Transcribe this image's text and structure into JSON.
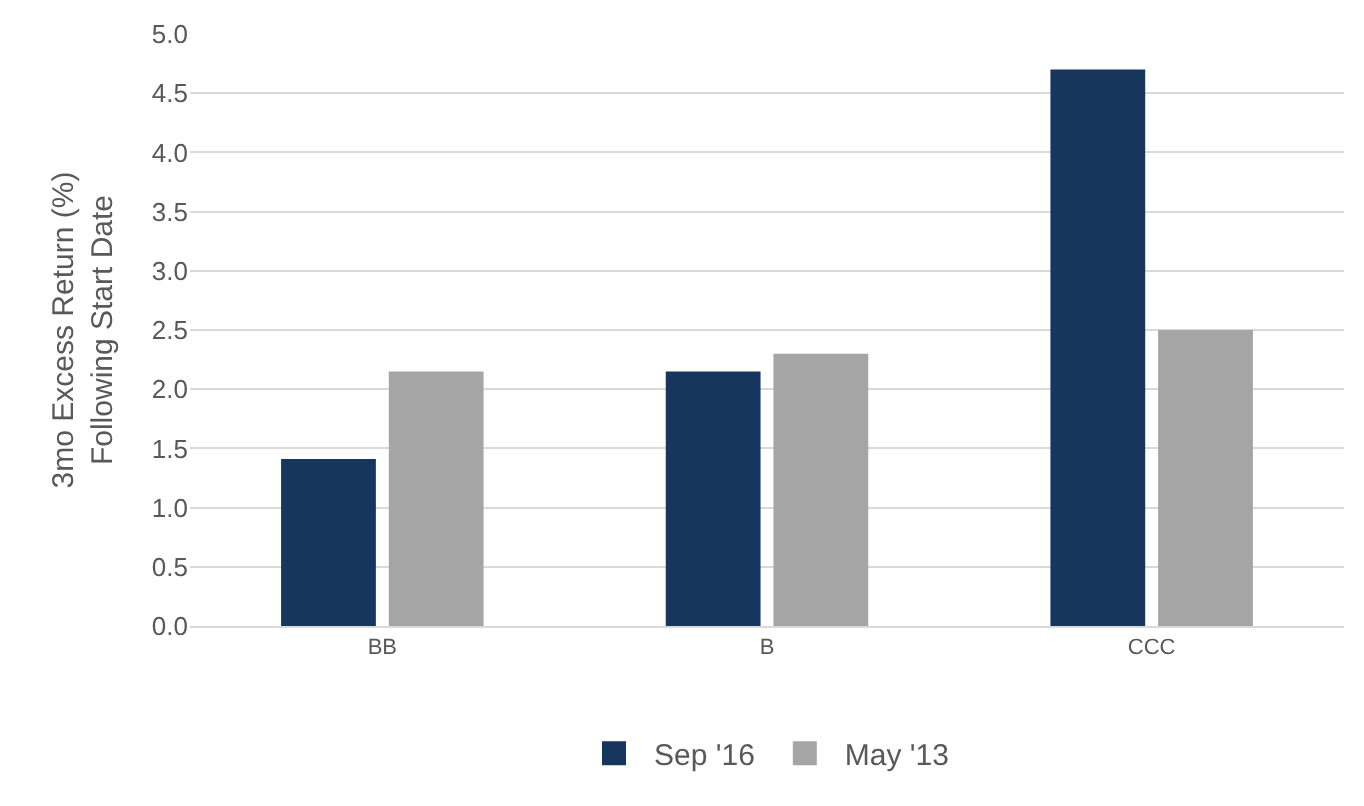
{
  "chart_data": {
    "type": "bar",
    "ylabel": "3mo Excess Return (%) Following Start Date",
    "categories": [
      "BB",
      "B",
      "CCC"
    ],
    "series": [
      {
        "name": "Sep '16",
        "color": "#17365d",
        "values": [
          1.41,
          2.15,
          4.7
        ]
      },
      {
        "name": "May '13",
        "color": "#a5a5a5",
        "values": [
          2.15,
          2.3,
          2.5
        ]
      }
    ],
    "ylim": [
      0,
      5
    ],
    "yticks": [
      {
        "value": 0,
        "label": "0.0"
      },
      {
        "value": 0.5,
        "label": "0.5"
      },
      {
        "value": 1,
        "label": "1.0"
      },
      {
        "value": 1.5,
        "label": "1.5"
      },
      {
        "value": 2,
        "label": "2.0"
      },
      {
        "value": 2.5,
        "label": "2.5"
      },
      {
        "value": 3,
        "label": "3.0"
      },
      {
        "value": 3.5,
        "label": "3.5"
      },
      {
        "value": 4,
        "label": "4.0"
      },
      {
        "value": 4.5,
        "label": "4.5"
      },
      {
        "value": 5,
        "label": "5.0"
      }
    ],
    "grid": "y",
    "legend": "bottom"
  }
}
